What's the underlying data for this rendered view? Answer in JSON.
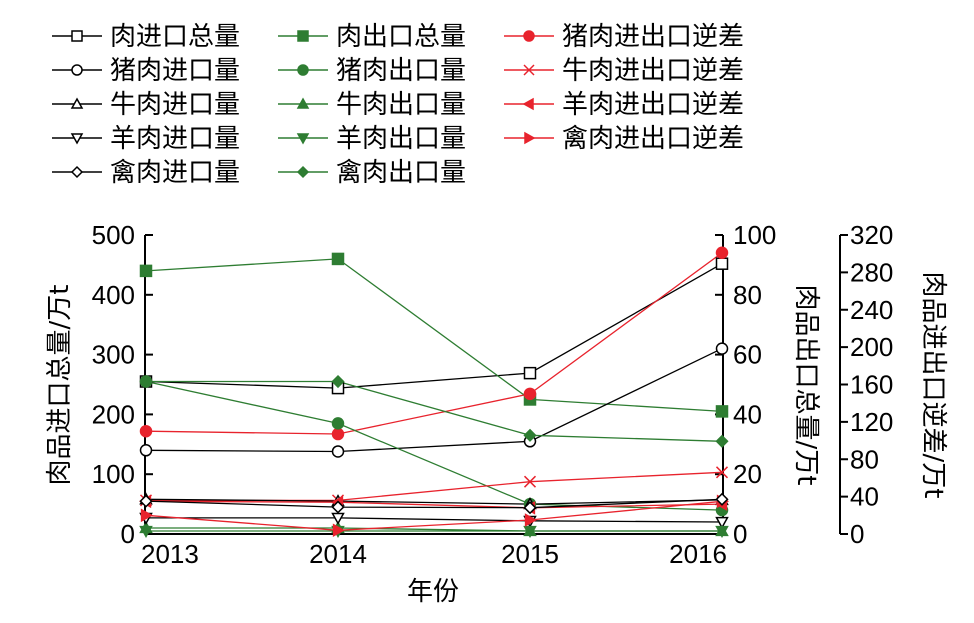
{
  "chart_data": {
    "type": "line",
    "categories": [
      "2013",
      "2014",
      "2015",
      "2016"
    ],
    "xlabel": "年份",
    "axes": {
      "left": {
        "label": "肉品进口总量/万t",
        "range": [
          0,
          500
        ],
        "ticks": [
          "0",
          "100",
          "200",
          "300",
          "400",
          "500"
        ]
      },
      "right1": {
        "label": "肉品出口总量/万t",
        "range": [
          0,
          100
        ],
        "ticks": [
          "0",
          "20",
          "40",
          "60",
          "80",
          "100"
        ]
      },
      "right2": {
        "label": "肉品进出口逆差/万t",
        "range": [
          0,
          320
        ],
        "ticks": [
          "0",
          "40",
          "80",
          "120",
          "160",
          "200",
          "240",
          "280",
          "320"
        ]
      }
    },
    "legend_position": "top",
    "series": [
      {
        "name": "肉进口总量",
        "axis": "left",
        "color": "#000000",
        "marker": "square-open",
        "values": [
          255,
          244,
          269,
          452
        ]
      },
      {
        "name": "肉出口总量",
        "axis": "right1",
        "color": "#2e7d32",
        "marker": "square-filled",
        "values": [
          88,
          92,
          45,
          41
        ]
      },
      {
        "name": "猪肉进出口逆差",
        "axis": "right2",
        "color": "#e8232d",
        "marker": "circle-filled",
        "values": [
          110,
          107,
          150,
          301
        ]
      },
      {
        "name": "猪肉进口量",
        "axis": "left",
        "color": "#000000",
        "marker": "circle-open",
        "values": [
          140,
          138,
          155,
          310
        ]
      },
      {
        "name": "猪肉出口量",
        "axis": "right1",
        "color": "#2e7d32",
        "marker": "circle-filled",
        "values": [
          51,
          37,
          10,
          8
        ]
      },
      {
        "name": "牛肉进出口逆差",
        "axis": "right2",
        "color": "#e8232d",
        "marker": "x",
        "values": [
          36,
          36,
          56,
          66
        ]
      },
      {
        "name": "牛肉进口量",
        "axis": "left",
        "color": "#000000",
        "marker": "triangle-up-open",
        "values": [
          58,
          55,
          50,
          57
        ]
      },
      {
        "name": "牛肉出口量",
        "axis": "right1",
        "color": "#2e7d32",
        "marker": "triangle-up-filled",
        "values": [
          2,
          2,
          1,
          1
        ]
      },
      {
        "name": "羊肉进出口逆差",
        "axis": "right2",
        "color": "#e8232d",
        "marker": "triangle-left-filled",
        "values": [
          35,
          34,
          28,
          32
        ]
      },
      {
        "name": "羊肉进口量",
        "axis": "left",
        "color": "#000000",
        "marker": "triangle-down-open",
        "values": [
          27,
          27,
          22,
          20
        ]
      },
      {
        "name": "羊肉出口量",
        "axis": "right1",
        "color": "#2e7d32",
        "marker": "triangle-down-filled",
        "values": [
          1,
          1,
          1,
          1
        ]
      },
      {
        "name": "禽肉进出口逆差",
        "axis": "right2",
        "color": "#e8232d",
        "marker": "triangle-right-filled",
        "values": [
          20,
          4,
          15,
          35
        ]
      },
      {
        "name": "禽肉进口量",
        "axis": "left",
        "color": "#000000",
        "marker": "diamond-open",
        "values": [
          55,
          45,
          44,
          58
        ]
      },
      {
        "name": "禽肉出口量",
        "axis": "right1",
        "color": "#2e7d32",
        "marker": "diamond-filled",
        "values": [
          51,
          51,
          33,
          31
        ]
      }
    ]
  }
}
